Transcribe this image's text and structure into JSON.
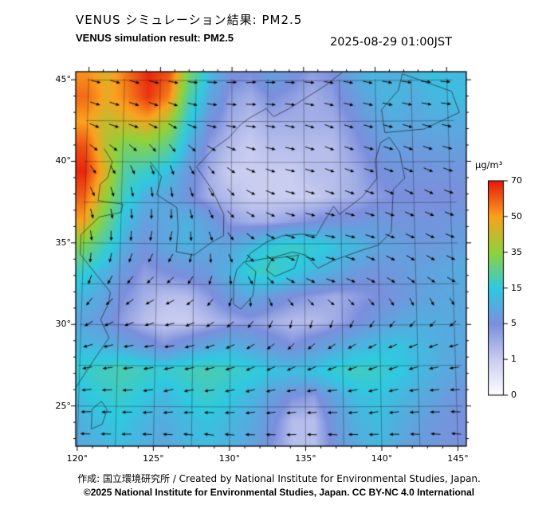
{
  "header": {
    "title_jp": "VENUS シミュレーション結果: PM2.5",
    "title_en": "VENUS simulation result: PM2.5",
    "datetime": "2025-08-29 01:00JST"
  },
  "footer": {
    "credit": "作成: 国立環境研究所 / Created by National Institute for Environmental Studies, Japan.",
    "license": "©2025 National Institute for Environmental Studies, Japan. CC BY-NC 4.0 International"
  },
  "chart_data": {
    "type": "heatmap",
    "title": "VENUS シミュレーション結果: PM2.5",
    "subtitle": "VENUS simulation result: PM2.5",
    "timestamp": "2025-08-29 01:00JST",
    "unit": "µg/m³",
    "colorbar": {
      "label": "µg/m³",
      "values": [
        0,
        1,
        5,
        15,
        35,
        50,
        70
      ],
      "colors": [
        "#ffffff",
        "#c9cdf0",
        "#7b8fdc",
        "#2fc9e0",
        "#8ed23c",
        "#f9a21f",
        "#e8190c"
      ]
    },
    "axes": {
      "lon_range": [
        119.9,
        145.55
      ],
      "lat_range": [
        22.6,
        45.5
      ],
      "graticule_step": 2.5,
      "lon_ticks": [
        120,
        125,
        130,
        135,
        140,
        145
      ],
      "lon_tick_labels": [
        "120°",
        "125°",
        "130°",
        "135°",
        "140°",
        "145°"
      ],
      "lat_ticks": [
        25,
        30,
        35,
        40,
        45
      ],
      "lat_tick_labels": [
        "25°",
        "30°",
        "35°",
        "40°",
        "45°"
      ]
    },
    "pm25_grid": {
      "lon0": 119.9,
      "lon1": 145.55,
      "lat0": 45.5,
      "lat1": 22.6,
      "cols": 19,
      "rows": 16,
      "values": [
        [
          52,
          45,
          58,
          68,
          62,
          30,
          12,
          6,
          5,
          8,
          6,
          4,
          5,
          9,
          12,
          10,
          12,
          14,
          12
        ],
        [
          58,
          48,
          55,
          66,
          55,
          22,
          9,
          4,
          3,
          5,
          4,
          3,
          4,
          7,
          10,
          12,
          10,
          12,
          13
        ],
        [
          50,
          42,
          45,
          48,
          38,
          15,
          6,
          3,
          2,
          3,
          3,
          3,
          3,
          5,
          8,
          10,
          9,
          10,
          10
        ],
        [
          62,
          40,
          30,
          32,
          25,
          10,
          4,
          2,
          1,
          2,
          2,
          2,
          2,
          4,
          6,
          8,
          7,
          8,
          8
        ],
        [
          68,
          45,
          22,
          18,
          13,
          7,
          3,
          1,
          1,
          1,
          1,
          2,
          2,
          3,
          5,
          6,
          6,
          6,
          6
        ],
        [
          60,
          38,
          18,
          10,
          9,
          6,
          3,
          2,
          1,
          1,
          1,
          1,
          2,
          3,
          4,
          5,
          5,
          5,
          5
        ],
        [
          50,
          30,
          13,
          8,
          9,
          11,
          8,
          4,
          3,
          3,
          4,
          5,
          6,
          6,
          7,
          6,
          6,
          6,
          7
        ],
        [
          32,
          20,
          10,
          6,
          9,
          11,
          9,
          9,
          12,
          16,
          18,
          17,
          14,
          12,
          9,
          8,
          7,
          7,
          8
        ],
        [
          18,
          12,
          7,
          4,
          5,
          6,
          7,
          11,
          17,
          19,
          15,
          12,
          10,
          7,
          6,
          7,
          8,
          9,
          10
        ],
        [
          12,
          9,
          5,
          3,
          2,
          2,
          4,
          7,
          9,
          7,
          5,
          4,
          3,
          4,
          5,
          6,
          8,
          9,
          9
        ],
        [
          9,
          7,
          4,
          2,
          1,
          1,
          2,
          3,
          4,
          3,
          2,
          2,
          3,
          5,
          7,
          9,
          10,
          10,
          9
        ],
        [
          12,
          11,
          9,
          7,
          5,
          7,
          9,
          11,
          9,
          7,
          5,
          7,
          9,
          11,
          13,
          14,
          12,
          10,
          9
        ],
        [
          17,
          19,
          21,
          19,
          17,
          19,
          21,
          19,
          17,
          14,
          13,
          14,
          17,
          19,
          18,
          15,
          12,
          10,
          8
        ],
        [
          13,
          16,
          18,
          15,
          12,
          15,
          18,
          15,
          12,
          8,
          5,
          4,
          9,
          13,
          14,
          12,
          10,
          8,
          6
        ],
        [
          10,
          13,
          15,
          12,
          10,
          12,
          14,
          12,
          10,
          6,
          2,
          2,
          7,
          11,
          13,
          10,
          8,
          6,
          5
        ],
        [
          9,
          11,
          13,
          11,
          9,
          11,
          13,
          11,
          9,
          5,
          2,
          2,
          6,
          10,
          12,
          9,
          7,
          6,
          5
        ]
      ]
    },
    "wind_grid": {
      "cols": 10,
      "rows": 8,
      "uv": [
        [
          [
            1,
            -0.2
          ],
          [
            1,
            -0.3
          ],
          [
            0.9,
            -0.1
          ],
          [
            1,
            0
          ],
          [
            1,
            0.1
          ],
          [
            1,
            0
          ],
          [
            0.9,
            -0.1
          ],
          [
            1,
            -0.2
          ],
          [
            1,
            -0.1
          ],
          [
            1,
            0
          ]
        ],
        [
          [
            0.9,
            -0.4
          ],
          [
            1,
            -0.3
          ],
          [
            0.8,
            -0.5
          ],
          [
            0.9,
            -0.2
          ],
          [
            1,
            -0.1
          ],
          [
            0.9,
            -0.2
          ],
          [
            0.8,
            -0.3
          ],
          [
            0.9,
            -0.2
          ],
          [
            1,
            -0.3
          ],
          [
            0.9,
            -0.2
          ]
        ],
        [
          [
            0.5,
            -0.8
          ],
          [
            0.3,
            -0.9
          ],
          [
            0.2,
            -1
          ],
          [
            0.5,
            -0.8
          ],
          [
            0.8,
            -0.4
          ],
          [
            0.9,
            -0.2
          ],
          [
            0.8,
            -0.3
          ],
          [
            0.9,
            -0.3
          ],
          [
            0.8,
            -0.4
          ],
          [
            0.9,
            -0.3
          ]
        ],
        [
          [
            0.2,
            -1
          ],
          [
            0,
            -1
          ],
          [
            -0.2,
            -0.9
          ],
          [
            0.3,
            -0.8
          ],
          [
            0.7,
            -0.5
          ],
          [
            0.9,
            -0.3
          ],
          [
            1,
            -0.2
          ],
          [
            0.9,
            -0.3
          ],
          [
            0.8,
            -0.4
          ],
          [
            0.8,
            -0.3
          ]
        ],
        [
          [
            -0.3,
            -0.8
          ],
          [
            -0.5,
            -0.6
          ],
          [
            -0.6,
            -0.4
          ],
          [
            -0.3,
            -0.6
          ],
          [
            0.3,
            -0.6
          ],
          [
            0.7,
            -0.4
          ],
          [
            0.8,
            -0.3
          ],
          [
            0.7,
            -0.4
          ],
          [
            0.6,
            -0.5
          ],
          [
            0.7,
            -0.4
          ]
        ],
        [
          [
            -0.8,
            -0.3
          ],
          [
            -0.9,
            -0.2
          ],
          [
            -0.9,
            -0.1
          ],
          [
            -0.8,
            -0.3
          ],
          [
            -0.6,
            -0.4
          ],
          [
            -0.4,
            -0.5
          ],
          [
            -0.5,
            -0.4
          ],
          [
            -0.6,
            -0.3
          ],
          [
            -0.7,
            -0.3
          ],
          [
            -0.7,
            -0.2
          ]
        ],
        [
          [
            -0.9,
            -0.1
          ],
          [
            -1,
            0
          ],
          [
            -0.9,
            -0.2
          ],
          [
            -0.9,
            -0.1
          ],
          [
            -0.8,
            -0.2
          ],
          [
            -0.8,
            -0.1
          ],
          [
            -0.9,
            -0.1
          ],
          [
            -0.8,
            -0.2
          ],
          [
            -0.8,
            -0.1
          ],
          [
            -0.9,
            0
          ]
        ],
        [
          [
            -0.9,
            0.1
          ],
          [
            -0.9,
            0
          ],
          [
            -0.8,
            0.1
          ],
          [
            -0.9,
            0.2
          ],
          [
            -0.8,
            0.1
          ],
          [
            -0.9,
            0
          ],
          [
            -0.8,
            0.1
          ],
          [
            -0.8,
            0
          ],
          [
            -0.9,
            0.1
          ],
          [
            -0.8,
            0.1
          ]
        ]
      ]
    },
    "coastlines": [
      [
        [
          41.5,
          140.9
        ],
        [
          40.6,
          141.6
        ],
        [
          39.0,
          141.9
        ],
        [
          38.3,
          141.1
        ],
        [
          37.0,
          141.0
        ],
        [
          35.7,
          140.9
        ],
        [
          34.9,
          140.0
        ],
        [
          34.6,
          138.9
        ],
        [
          34.0,
          137.0
        ],
        [
          33.5,
          135.9
        ],
        [
          34.3,
          135.1
        ],
        [
          34.5,
          134.2
        ],
        [
          34.2,
          133.0
        ],
        [
          33.9,
          131.0
        ],
        [
          34.4,
          131.3
        ],
        [
          35.1,
          132.4
        ],
        [
          35.5,
          133.5
        ],
        [
          35.6,
          134.8
        ],
        [
          35.5,
          135.8
        ],
        [
          36.3,
          136.3
        ],
        [
          37.3,
          137.0
        ],
        [
          36.8,
          137.4
        ],
        [
          37.9,
          139.0
        ],
        [
          39.0,
          140.0
        ],
        [
          40.1,
          139.9
        ],
        [
          41.2,
          140.3
        ],
        [
          41.5,
          140.9
        ]
      ],
      [
        [
          45.4,
          141.9
        ],
        [
          44.3,
          145.3
        ],
        [
          43.0,
          145.8
        ],
        [
          42.0,
          143.3
        ],
        [
          41.8,
          140.6
        ],
        [
          43.2,
          140.4
        ],
        [
          44.4,
          141.6
        ],
        [
          45.4,
          141.9
        ]
      ],
      [
        [
          33.9,
          130.9
        ],
        [
          33.3,
          131.7
        ],
        [
          31.8,
          131.5
        ],
        [
          31.0,
          130.7
        ],
        [
          31.3,
          130.2
        ],
        [
          32.6,
          130.2
        ],
        [
          33.4,
          130.4
        ],
        [
          33.9,
          130.9
        ]
      ],
      [
        [
          34.3,
          134.6
        ],
        [
          33.5,
          134.3
        ],
        [
          33.0,
          133.0
        ],
        [
          33.4,
          132.4
        ],
        [
          34.1,
          132.8
        ],
        [
          34.3,
          134.6
        ]
      ],
      [
        [
          42.3,
          130.6
        ],
        [
          41.5,
          129.8
        ],
        [
          40.8,
          128.7
        ],
        [
          39.7,
          127.6
        ],
        [
          38.3,
          128.7
        ],
        [
          36.8,
          129.5
        ],
        [
          35.5,
          129.5
        ],
        [
          35.1,
          128.7
        ],
        [
          34.3,
          127.5
        ],
        [
          34.5,
          126.3
        ],
        [
          35.9,
          126.4
        ],
        [
          37.2,
          126.3
        ],
        [
          38.0,
          124.9
        ],
        [
          39.1,
          125.2
        ],
        [
          40.0,
          124.4
        ]
      ],
      [
        [
          40.8,
          121.2
        ],
        [
          40.0,
          121.8
        ],
        [
          39.0,
          121.5
        ],
        [
          38.6,
          121.0
        ],
        [
          37.6,
          120.9
        ],
        [
          37.4,
          122.6
        ],
        [
          36.9,
          122.5
        ],
        [
          36.6,
          121.0
        ],
        [
          35.5,
          119.8
        ],
        [
          34.3,
          119.8
        ],
        [
          33.2,
          120.8
        ],
        [
          32.0,
          121.9
        ],
        [
          31.3,
          121.8
        ],
        [
          30.3,
          121.3
        ],
        [
          29.2,
          121.9
        ],
        [
          27.8,
          120.9
        ],
        [
          26.0,
          119.7
        ],
        [
          24.8,
          118.7
        ],
        [
          23.6,
          117.3
        ]
      ],
      [
        [
          42.3,
          130.6
        ],
        [
          42.7,
          131.2
        ],
        [
          43.3,
          132.4
        ],
        [
          42.8,
          132.9
        ],
        [
          43.3,
          134.0
        ],
        [
          44.7,
          136.5
        ],
        [
          45.5,
          137.7
        ]
      ],
      [
        [
          25.3,
          121.5
        ],
        [
          24.8,
          121.9
        ],
        [
          23.9,
          121.6
        ],
        [
          23.6,
          120.9
        ],
        [
          24.8,
          120.9
        ],
        [
          25.3,
          121.5
        ]
      ]
    ]
  }
}
